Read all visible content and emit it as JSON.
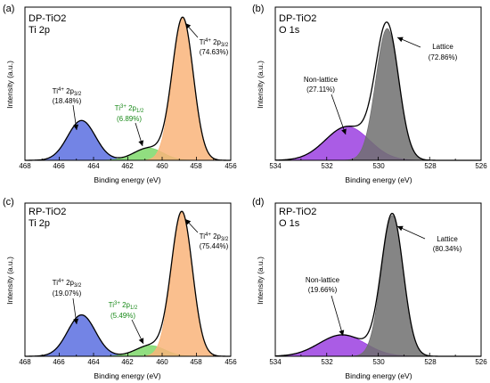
{
  "panels": [
    {
      "panel_label": "(a)",
      "sample": "DP-TiO2",
      "region": "Ti 2p",
      "xlabel": "Binding energy (eV)",
      "ylabel": "Intensity (a.u.)",
      "xlim": [
        468,
        456
      ],
      "ticks": [
        "468",
        "466",
        "464",
        "462",
        "460",
        "458",
        "456"
      ],
      "annotations": [
        {
          "line1_base": "Ti",
          "line1_sup": "4+",
          "line1_mid": " 2p",
          "line1_sub": "3/2",
          "line2": "(18.48%)",
          "color": "#000000"
        },
        {
          "line1_base": "Ti",
          "line1_sup": "3+",
          "line1_mid": " 2p",
          "line1_sub": "1/2",
          "line2": "(6.89%)",
          "color": "#1a8a1a"
        },
        {
          "line1_base": "Ti",
          "line1_sup": "4+",
          "line1_mid": " 2p",
          "line1_sub": "3/2",
          "line2": "(74.63%)",
          "color": "#000000"
        }
      ]
    },
    {
      "panel_label": "(b)",
      "sample": "DP-TiO2",
      "region": "O 1s",
      "xlabel": "Binding energy (eV)",
      "ylabel": "Intensity (a.u.)",
      "xlim": [
        534,
        526
      ],
      "ticks": [
        "534",
        "532",
        "530",
        "528",
        "526"
      ],
      "annotations": [
        {
          "line1": "Non-lattice",
          "line2": "(27.11%)"
        },
        {
          "line1": "Lattice",
          "line2": "(72.86%)"
        }
      ]
    },
    {
      "panel_label": "(c)",
      "sample": "RP-TiO2",
      "region": "Ti 2p",
      "xlabel": "Binding energy (eV)",
      "ylabel": "Intensity (a.u.)",
      "xlim": [
        468,
        456
      ],
      "ticks": [
        "468",
        "466",
        "464",
        "462",
        "460",
        "458",
        "456"
      ],
      "annotations": [
        {
          "line1_base": "Ti",
          "line1_sup": "4+",
          "line1_mid": " 2p",
          "line1_sub": "3/2",
          "line2": "(19.07%)",
          "color": "#000000"
        },
        {
          "line1_base": "Ti",
          "line1_sup": "3+",
          "line1_mid": " 2p",
          "line1_sub": "1/2",
          "line2": "(5.49%)",
          "color": "#1a8a1a"
        },
        {
          "line1_base": "Ti",
          "line1_sup": "4+",
          "line1_mid": " 2p",
          "line1_sub": "3/2",
          "line2": "(75.44%)",
          "color": "#000000"
        }
      ]
    },
    {
      "panel_label": "(d)",
      "sample": "RP-TiO2",
      "region": "O 1s",
      "xlabel": "Binding energy (eV)",
      "ylabel": "Intensity (a.u.)",
      "xlim": [
        534,
        526
      ],
      "ticks": [
        "534",
        "532",
        "530",
        "528",
        "526"
      ],
      "annotations": [
        {
          "line1": "Non-lattice",
          "line2": "(19.66%)"
        },
        {
          "line1": "Lattice",
          "line2": "(80.34%)"
        }
      ]
    }
  ],
  "chart_data": [
    {
      "type": "area",
      "panel": "(a)",
      "x_unit": "eV",
      "xlim": [
        468,
        456
      ],
      "ylim": [
        0,
        1
      ],
      "series": [
        {
          "peak": "Ti4+ 2p1/2",
          "center": 464.7,
          "fwhm": 1.9,
          "height": 0.26,
          "area_percent": 18.48,
          "color": "#5b6fe0"
        },
        {
          "peak": "Ti3+ 2p1/2",
          "center": 460.8,
          "fwhm": 2.0,
          "height": 0.08,
          "area_percent": 6.89,
          "color": "#7ed86a"
        },
        {
          "peak": "Ti4+ 2p3/2",
          "center": 458.8,
          "fwhm": 1.45,
          "height": 0.93,
          "area_percent": 74.63,
          "color": "#f9b47a"
        }
      ]
    },
    {
      "type": "area",
      "panel": "(b)",
      "x_unit": "eV",
      "xlim": [
        534,
        526
      ],
      "ylim": [
        0,
        1
      ],
      "series": [
        {
          "peak": "Non-lattice",
          "center": 531.2,
          "fwhm": 2.0,
          "height": 0.22,
          "area_percent": 27.11,
          "color": "#9b40e0"
        },
        {
          "peak": "Lattice",
          "center": 529.65,
          "fwhm": 1.05,
          "height": 0.86,
          "area_percent": 72.86,
          "color": "#707070"
        }
      ]
    },
    {
      "type": "area",
      "panel": "(c)",
      "x_unit": "eV",
      "xlim": [
        468,
        456
      ],
      "ylim": [
        0,
        1
      ],
      "series": [
        {
          "peak": "Ti4+ 2p1/2",
          "center": 464.7,
          "fwhm": 1.9,
          "height": 0.27,
          "area_percent": 19.07,
          "color": "#5b6fe0"
        },
        {
          "peak": "Ti3+ 2p1/2",
          "center": 460.7,
          "fwhm": 2.0,
          "height": 0.07,
          "area_percent": 5.49,
          "color": "#7ed86a"
        },
        {
          "peak": "Ti4+ 2p3/2",
          "center": 458.85,
          "fwhm": 1.45,
          "height": 0.94,
          "area_percent": 75.44,
          "color": "#f9b47a"
        }
      ]
    },
    {
      "type": "area",
      "panel": "(d)",
      "x_unit": "eV",
      "xlim": [
        534,
        526
      ],
      "ylim": [
        0,
        1
      ],
      "series": [
        {
          "peak": "Non-lattice",
          "center": 531.4,
          "fwhm": 2.1,
          "height": 0.14,
          "area_percent": 19.66,
          "color": "#9b40e0"
        },
        {
          "peak": "Lattice",
          "center": 529.45,
          "fwhm": 1.0,
          "height": 0.92,
          "area_percent": 80.34,
          "color": "#707070"
        }
      ]
    }
  ]
}
